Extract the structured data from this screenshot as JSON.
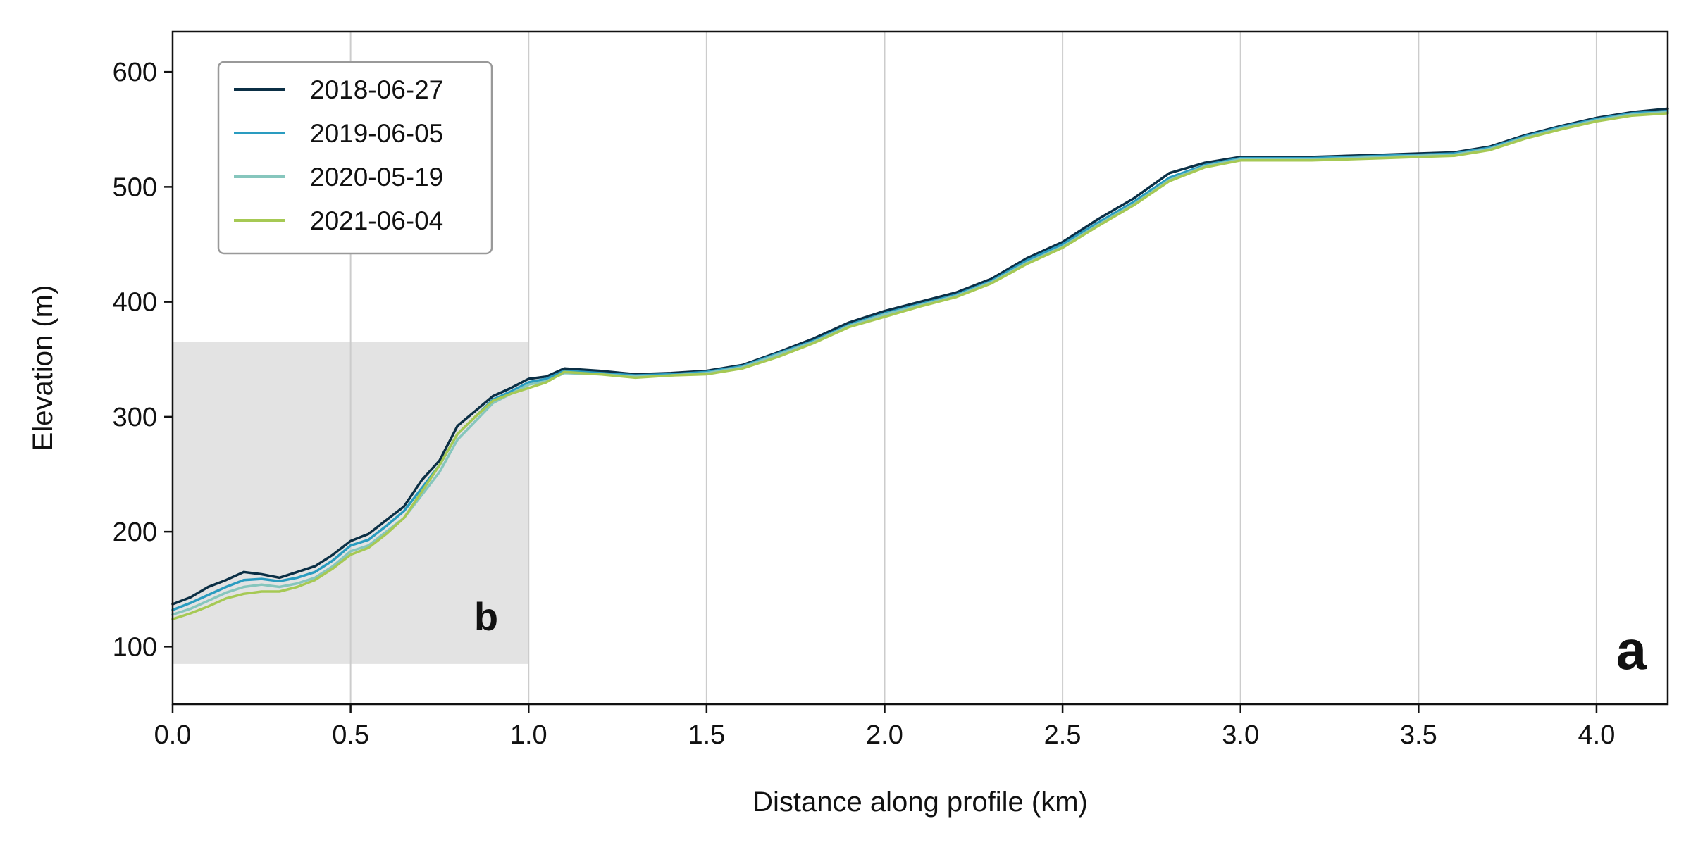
{
  "chart_data": {
    "type": "line",
    "xlabel": "Distance along profile (km)",
    "ylabel": "Elevation (m)",
    "xlim": [
      0,
      4.2
    ],
    "ylim": [
      50,
      635
    ],
    "x_ticks": [
      "0.0",
      "0.5",
      "1.0",
      "1.5",
      "2.0",
      "2.5",
      "3.0",
      "3.5",
      "4.0"
    ],
    "y_ticks": [
      "100",
      "200",
      "300",
      "400",
      "500",
      "600"
    ],
    "grid": "vertical",
    "legend_position": "top-left",
    "highlight_region": {
      "x": [
        0,
        1.0
      ],
      "y": [
        85,
        365
      ],
      "label": "b",
      "color": "#e3e3e3"
    },
    "panel_label": "a",
    "x": [
      0.0,
      0.05,
      0.1,
      0.15,
      0.2,
      0.25,
      0.3,
      0.35,
      0.4,
      0.45,
      0.5,
      0.55,
      0.6,
      0.65,
      0.7,
      0.75,
      0.8,
      0.85,
      0.9,
      0.95,
      1.0,
      1.05,
      1.1,
      1.2,
      1.3,
      1.4,
      1.5,
      1.6,
      1.7,
      1.8,
      1.9,
      2.0,
      2.1,
      2.2,
      2.3,
      2.4,
      2.5,
      2.6,
      2.7,
      2.8,
      2.9,
      3.0,
      3.1,
      3.2,
      3.3,
      3.4,
      3.5,
      3.6,
      3.7,
      3.8,
      3.9,
      4.0,
      4.1,
      4.2
    ],
    "series": [
      {
        "name": "2018-06-27",
        "color": "#0b2f45",
        "values": [
          137,
          143,
          152,
          158,
          165,
          163,
          160,
          165,
          170,
          180,
          192,
          198,
          210,
          222,
          245,
          262,
          292,
          305,
          318,
          325,
          333,
          335,
          342,
          340,
          337,
          338,
          340,
          345,
          356,
          368,
          382,
          392,
          400,
          408,
          420,
          438,
          452,
          472,
          490,
          512,
          521,
          526,
          526,
          526,
          527,
          528,
          529,
          530,
          535,
          545,
          553,
          560,
          565,
          568
        ]
      },
      {
        "name": "2019-06-05",
        "color": "#2a9cc0",
        "values": [
          132,
          138,
          145,
          152,
          158,
          159,
          157,
          160,
          165,
          175,
          188,
          193,
          205,
          218,
          238,
          258,
          285,
          300,
          315,
          322,
          330,
          333,
          340,
          338,
          336,
          337,
          339,
          344,
          355,
          366,
          380,
          390,
          398,
          406,
          418,
          436,
          450,
          469,
          487,
          508,
          519,
          525,
          525,
          525,
          526,
          527,
          528,
          529,
          534,
          544,
          552,
          559,
          564,
          566
        ]
      },
      {
        "name": "2020-05-19",
        "color": "#86c6bd",
        "values": [
          128,
          133,
          140,
          147,
          152,
          154,
          152,
          155,
          160,
          170,
          183,
          188,
          200,
          212,
          232,
          252,
          280,
          296,
          312,
          320,
          328,
          331,
          338,
          337,
          335,
          336,
          338,
          343,
          354,
          365,
          379,
          389,
          397,
          405,
          417,
          434,
          448,
          467,
          485,
          506,
          518,
          524,
          524,
          524,
          525,
          526,
          527,
          528,
          533,
          543,
          551,
          558,
          563,
          565
        ]
      },
      {
        "name": "2021-06-04",
        "color": "#a6c954",
        "values": [
          124,
          129,
          135,
          142,
          146,
          148,
          148,
          152,
          158,
          168,
          180,
          186,
          198,
          212,
          235,
          258,
          285,
          300,
          314,
          320,
          325,
          330,
          339,
          337,
          334,
          336,
          337,
          342,
          352,
          364,
          378,
          387,
          396,
          404,
          416,
          433,
          447,
          466,
          484,
          505,
          517,
          523,
          523,
          523,
          524,
          525,
          526,
          527,
          532,
          542,
          550,
          557,
          562,
          564
        ]
      }
    ]
  }
}
